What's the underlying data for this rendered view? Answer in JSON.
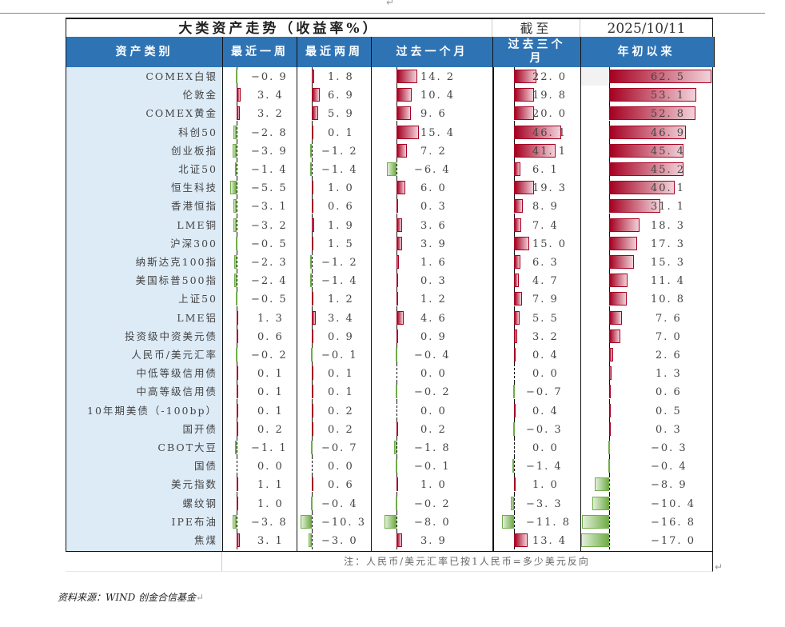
{
  "title": "大类资产走势（收益率%）",
  "as_of_label": "截至",
  "as_of_date": "2025/10/11",
  "headers": [
    "资产类别",
    "最近一周",
    "最近两周",
    "过去一个月",
    "过去三个月",
    "年初以来"
  ],
  "colors": {
    "header_bg": "#2e74b5",
    "label_bg": "#ddebf7",
    "positive": "#a50021",
    "negative": "#70ad47"
  },
  "rows": [
    {
      "asset": "COMEX白银",
      "w1": -0.9,
      "w2": 1.8,
      "m1": 14.2,
      "m3": 22.0,
      "ytd": 62.5
    },
    {
      "asset": "伦敦金",
      "w1": 3.4,
      "w2": 6.9,
      "m1": 10.4,
      "m3": 19.8,
      "ytd": 53.1
    },
    {
      "asset": "COMEX黄金",
      "w1": 3.2,
      "w2": 5.9,
      "m1": 9.6,
      "m3": 20.0,
      "ytd": 52.8
    },
    {
      "asset": "科创50",
      "w1": -2.8,
      "w2": 0.1,
      "m1": 15.4,
      "m3": 46.1,
      "ytd": 46.9
    },
    {
      "asset": "创业板指",
      "w1": -3.9,
      "w2": -1.2,
      "m1": 7.2,
      "m3": 41.1,
      "ytd": 45.4
    },
    {
      "asset": "北证50",
      "w1": -1.4,
      "w2": -1.4,
      "m1": -6.4,
      "m3": 6.1,
      "ytd": 45.2
    },
    {
      "asset": "恒生科技",
      "w1": -5.5,
      "w2": 1.0,
      "m1": 6.0,
      "m3": 19.3,
      "ytd": 40.1
    },
    {
      "asset": "香港恒指",
      "w1": -3.1,
      "w2": 0.6,
      "m1": 0.3,
      "m3": 8.9,
      "ytd": 31.1
    },
    {
      "asset": "LME铜",
      "w1": -3.2,
      "w2": 1.9,
      "m1": 3.6,
      "m3": 7.4,
      "ytd": 18.3
    },
    {
      "asset": "沪深300",
      "w1": -0.5,
      "w2": 1.5,
      "m1": 3.9,
      "m3": 15.0,
      "ytd": 17.3
    },
    {
      "asset": "纳斯达克100指",
      "w1": -2.3,
      "w2": -1.2,
      "m1": 1.6,
      "m3": 6.3,
      "ytd": 15.3
    },
    {
      "asset": "美国标普500指",
      "w1": -2.4,
      "w2": -1.4,
      "m1": 0.3,
      "m3": 4.7,
      "ytd": 11.4
    },
    {
      "asset": "上证50",
      "w1": -0.5,
      "w2": 1.2,
      "m1": 1.2,
      "m3": 7.9,
      "ytd": 10.8
    },
    {
      "asset": "LME铝",
      "w1": 1.3,
      "w2": 3.4,
      "m1": 4.6,
      "m3": 5.5,
      "ytd": 7.6
    },
    {
      "asset": "投资级中资美元债",
      "w1": 0.6,
      "w2": 0.9,
      "m1": 0.9,
      "m3": 3.2,
      "ytd": 7.0
    },
    {
      "asset": "人民币/美元汇率",
      "w1": -0.2,
      "w2": -0.1,
      "m1": -0.4,
      "m3": 0.4,
      "ytd": 2.6
    },
    {
      "asset": "中低等级信用债",
      "w1": 0.1,
      "w2": 0.1,
      "m1": 0.0,
      "m3": 0.0,
      "ytd": 1.3
    },
    {
      "asset": "中高等级信用债",
      "w1": 0.1,
      "w2": 0.1,
      "m1": -0.2,
      "m3": -0.7,
      "ytd": 0.6
    },
    {
      "asset": "10年期美债（-100bp）",
      "w1": 0.1,
      "w2": 0.2,
      "m1": 0.0,
      "m3": 0.4,
      "ytd": 0.5
    },
    {
      "asset": "国开债",
      "w1": 0.2,
      "w2": 0.2,
      "m1": 0.2,
      "m3": -0.3,
      "ytd": 0.3
    },
    {
      "asset": "CBOT大豆",
      "w1": -1.1,
      "w2": -0.7,
      "m1": -1.8,
      "m3": 0.0,
      "ytd": -0.3
    },
    {
      "asset": "国债",
      "w1": 0.0,
      "w2": 0.0,
      "m1": -0.1,
      "m3": -1.4,
      "ytd": -0.4
    },
    {
      "asset": "美元指数",
      "w1": 1.1,
      "w2": 0.6,
      "m1": 1.0,
      "m3": 1.0,
      "ytd": -8.9
    },
    {
      "asset": "螺纹钢",
      "w1": 1.0,
      "w2": -0.4,
      "m1": -0.2,
      "m3": -3.3,
      "ytd": -10.4
    },
    {
      "asset": "IPE布油",
      "w1": -3.8,
      "w2": -10.3,
      "m1": -8.0,
      "m3": -11.8,
      "ytd": -16.8
    },
    {
      "asset": "焦煤",
      "w1": 3.1,
      "w2": -3.0,
      "m1": 3.9,
      "m3": 13.4,
      "ytd": -17.0
    }
  ],
  "note": "注：人民币/美元汇率已按1人民币=多少美元反向",
  "source": "资料来源：WIND 创金合信基金",
  "paragraph_mark": "↵"
}
